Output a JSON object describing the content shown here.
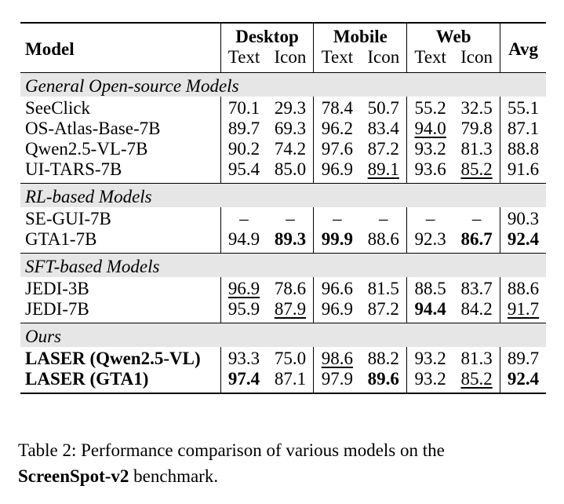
{
  "table": {
    "header": {
      "model": "Model",
      "groups": [
        "Desktop",
        "Mobile",
        "Web"
      ],
      "subcols": [
        "Text",
        "Icon"
      ],
      "avg": "Avg"
    },
    "sections": [
      {
        "title": "General Open-source Models",
        "rows": [
          {
            "model": "SeeClick",
            "bold": false,
            "vals": [
              "70.1",
              "29.3",
              "78.4",
              "50.7",
              "55.2",
              "32.5",
              "55.1"
            ],
            "style": [
              "",
              "",
              "",
              "",
              "",
              "",
              ""
            ]
          },
          {
            "model": "OS-Atlas-Base-7B",
            "bold": false,
            "vals": [
              "89.7",
              "69.3",
              "96.2",
              "83.4",
              "94.0",
              "79.8",
              "87.1"
            ],
            "style": [
              "",
              "",
              "",
              "",
              "u",
              "",
              ""
            ]
          },
          {
            "model": "Qwen2.5-VL-7B",
            "bold": false,
            "vals": [
              "90.2",
              "74.2",
              "97.6",
              "87.2",
              "93.2",
              "81.3",
              "88.8"
            ],
            "style": [
              "",
              "",
              "",
              "",
              "",
              "",
              ""
            ]
          },
          {
            "model": "UI-TARS-7B",
            "bold": false,
            "vals": [
              "95.4",
              "85.0",
              "96.9",
              "89.1",
              "93.6",
              "85.2",
              "91.6"
            ],
            "style": [
              "",
              "",
              "",
              "u",
              "",
              "u",
              ""
            ]
          }
        ]
      },
      {
        "title": "RL-based Models",
        "rows": [
          {
            "model": "SE-GUI-7B",
            "bold": false,
            "vals": [
              "–",
              "–",
              "–",
              "–",
              "–",
              "–",
              "90.3"
            ],
            "style": [
              "",
              "",
              "",
              "",
              "",
              "",
              ""
            ]
          },
          {
            "model": "GTA1-7B",
            "bold": false,
            "vals": [
              "94.9",
              "89.3",
              "99.9",
              "88.6",
              "92.3",
              "86.7",
              "92.4"
            ],
            "style": [
              "",
              "b",
              "b",
              "",
              "",
              "b",
              "b"
            ]
          }
        ]
      },
      {
        "title": "SFT-based Models",
        "rows": [
          {
            "model": "JEDI-3B",
            "bold": false,
            "vals": [
              "96.9",
              "78.6",
              "96.6",
              "81.5",
              "88.5",
              "83.7",
              "88.6"
            ],
            "style": [
              "u",
              "",
              "",
              "",
              "",
              "",
              ""
            ]
          },
          {
            "model": "JEDI-7B",
            "bold": false,
            "vals": [
              "95.9",
              "87.9",
              "96.9",
              "87.2",
              "94.4",
              "84.2",
              "91.7"
            ],
            "style": [
              "",
              "u",
              "",
              "",
              "b",
              "",
              "u"
            ]
          }
        ]
      },
      {
        "title": "Ours",
        "rows": [
          {
            "model": "LASER (Qwen2.5-VL)",
            "bold": true,
            "vals": [
              "93.3",
              "75.0",
              "98.6",
              "88.2",
              "93.2",
              "81.3",
              "89.7"
            ],
            "style": [
              "",
              "",
              "u",
              "",
              "",
              "",
              ""
            ]
          },
          {
            "model": "LASER (GTA1)",
            "bold": true,
            "vals": [
              "97.4",
              "87.1",
              "97.9",
              "89.6",
              "93.2",
              "85.2",
              "92.4"
            ],
            "style": [
              "b",
              "",
              "",
              "b",
              "",
              "u",
              "b"
            ]
          }
        ]
      }
    ]
  },
  "caption": {
    "label": "Table 2:",
    "text_before": " Performance comparison of various models on the",
    "benchmark": "ScreenSpot-v2",
    "text_after": " benchmark."
  }
}
